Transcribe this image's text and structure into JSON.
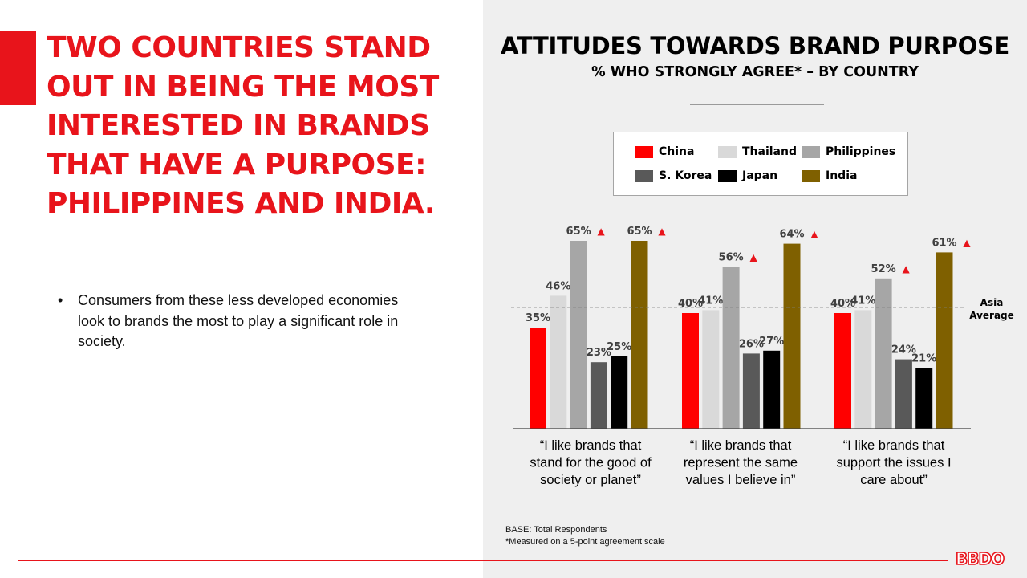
{
  "headline": "TWO COUNTRIES STAND OUT IN BEING THE MOST INTERESTED IN BRANDS THAT HAVE A PURPOSE: PHILIPPINES AND INDIA.",
  "bullets": [
    "Consumers from these less developed economies look to brands the most to play a significant role in society."
  ],
  "footnotes": {
    "base": "BASE: Total Respondents",
    "scale_note": "*Measured on a 5-point agreement scale"
  },
  "logo": "BBDO",
  "chart_data": {
    "type": "bar",
    "title": "ATTITUDES TOWARDS BRAND PURPOSE",
    "subtitle": "% WHO STRONGLY AGREE* – BY COUNTRY",
    "categories": [
      [
        "“I like brands that",
        "stand for the good of",
        "society or planet”"
      ],
      [
        "“I like brands that",
        "represent the same",
        "values I believe in”"
      ],
      [
        "“I like brands that",
        "support the issues I",
        "care about”"
      ]
    ],
    "series": [
      {
        "name": "China",
        "color": "#ff0000",
        "values": [
          35,
          40,
          40
        ]
      },
      {
        "name": "Thailand",
        "color": "#d9d9d9",
        "values": [
          46,
          41,
          41
        ]
      },
      {
        "name": "Philippines",
        "color": "#a6a6a6",
        "values": [
          65,
          56,
          52
        ]
      },
      {
        "name": "S. Korea",
        "color": "#595959",
        "values": [
          23,
          26,
          24
        ]
      },
      {
        "name": "Japan",
        "color": "#000000",
        "values": [
          25,
          27,
          21
        ]
      },
      {
        "name": "India",
        "color": "#7f6000",
        "values": [
          65,
          64,
          61
        ]
      }
    ],
    "value_suffix": "%",
    "highlight_marker": {
      "symbol": "▲",
      "color": "#e8141b",
      "series": [
        "Philippines",
        "India"
      ]
    },
    "reference_line": {
      "label": [
        "Asia",
        "Average"
      ],
      "value": 42,
      "style": "dashed"
    },
    "legend_position": "top",
    "ylim": [
      0,
      70
    ],
    "grid": false
  }
}
